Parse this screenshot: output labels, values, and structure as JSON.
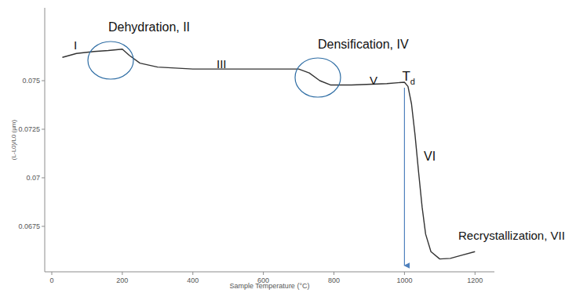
{
  "chart_data": {
    "type": "line",
    "x_label": "Sample Temperature (°C)",
    "y_label": "(L-L0)/L0 (µm)",
    "x": [
      30,
      70,
      120,
      160,
      200,
      220,
      250,
      300,
      400,
      500,
      600,
      700,
      730,
      760,
      790,
      850,
      950,
      1000,
      1010,
      1020,
      1030,
      1040,
      1050,
      1060,
      1075,
      1100,
      1130,
      1160,
      1200
    ],
    "values": [
      0.0762,
      0.0764,
      0.0765,
      0.07655,
      0.07662,
      0.0763,
      0.0759,
      0.0757,
      0.0756,
      0.0756,
      0.0756,
      0.0756,
      0.0754,
      0.075,
      0.07478,
      0.07478,
      0.07485,
      0.07492,
      0.0747,
      0.0738,
      0.0722,
      0.0703,
      0.0685,
      0.0671,
      0.0662,
      0.06582,
      0.06585,
      0.066,
      0.0662
    ],
    "color": "#333333",
    "xlim": [
      -20,
      1255
    ],
    "ylim": [
      0.06516,
      0.07875
    ],
    "xticks": [
      0,
      200,
      400,
      600,
      800,
      1000,
      1200
    ],
    "yticks": [
      0.0675,
      0.07,
      0.0725,
      0.075
    ],
    "grid": false,
    "annotations": [
      {
        "text": "I"
      },
      {
        "text": "Dehydration, II"
      },
      {
        "text": "III"
      },
      {
        "text": "Densification, IV"
      },
      {
        "text": "V"
      },
      {
        "text": "VI"
      },
      {
        "text": "Recrystallization, VII"
      },
      {
        "text": "T",
        "subscript": "d",
        "x": 1000
      }
    ]
  }
}
